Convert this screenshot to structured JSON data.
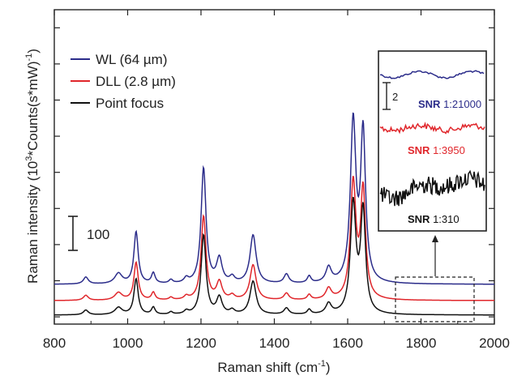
{
  "chart_data": {
    "type": "line",
    "xlabel": "Raman shift (cm",
    "xlabel_sup": "-1",
    "xlabel_tail": ")",
    "ylabel": "Raman intensity (10",
    "ylabel_sup": "3",
    "ylabel_tail": "*Counts(s*mW)",
    "ylabel_sup2": "-1",
    "ylabel_tail2": ")",
    "xlim": [
      800,
      2000
    ],
    "xticks": [
      "800",
      "1000",
      "1200",
      "1400",
      "1600",
      "1800",
      "2000"
    ],
    "xtick_values": [
      800,
      1000,
      1200,
      1400,
      1600,
      1800,
      2000
    ],
    "ylim": [
      -20,
      850
    ],
    "y_tick_labels_shown": false,
    "scale_bar": {
      "label": "100",
      "value": 100
    },
    "legend_position": "top-left",
    "peaks": [
      {
        "x": 886,
        "w": 8,
        "h": 0.06
      },
      {
        "x": 975,
        "w": 12,
        "h": 0.09
      },
      {
        "x": 1023,
        "w": 7,
        "h": 0.45
      },
      {
        "x": 1070,
        "w": 6,
        "h": 0.09
      },
      {
        "x": 1118,
        "w": 6,
        "h": 0.03
      },
      {
        "x": 1160,
        "w": 7,
        "h": 0.04
      },
      {
        "x": 1207,
        "w": 8,
        "h": 1.0
      },
      {
        "x": 1250,
        "w": 9,
        "h": 0.21
      },
      {
        "x": 1285,
        "w": 8,
        "h": 0.05
      },
      {
        "x": 1342,
        "w": 10,
        "h": 0.42
      },
      {
        "x": 1433,
        "w": 8,
        "h": 0.08
      },
      {
        "x": 1495,
        "w": 6,
        "h": 0.06
      },
      {
        "x": 1548,
        "w": 9,
        "h": 0.13
      },
      {
        "x": 1615,
        "w": 9,
        "h": 1.38
      },
      {
        "x": 1642,
        "w": 8,
        "h": 1.28
      }
    ],
    "series": [
      {
        "name": "WL (64 µm)",
        "color": "#2b2c8a",
        "baseline": 90,
        "scale": 320
      },
      {
        "name": "DLL (2.8 µm)",
        "color": "#e0262b",
        "baseline": 45,
        "scale": 232
      },
      {
        "name": "Point focus",
        "color": "#111111",
        "baseline": 5,
        "scale": 220
      }
    ],
    "inset": {
      "region_x": [
        1730,
        1950
      ],
      "scale_label": "2",
      "snr_label": "SNR",
      "series": [
        {
          "ratio": "1:21000",
          "color": "#2b2c8a"
        },
        {
          "ratio": "1:3950",
          "color": "#e0262b"
        },
        {
          "ratio": "1:310",
          "color": "#111111"
        }
      ]
    }
  }
}
